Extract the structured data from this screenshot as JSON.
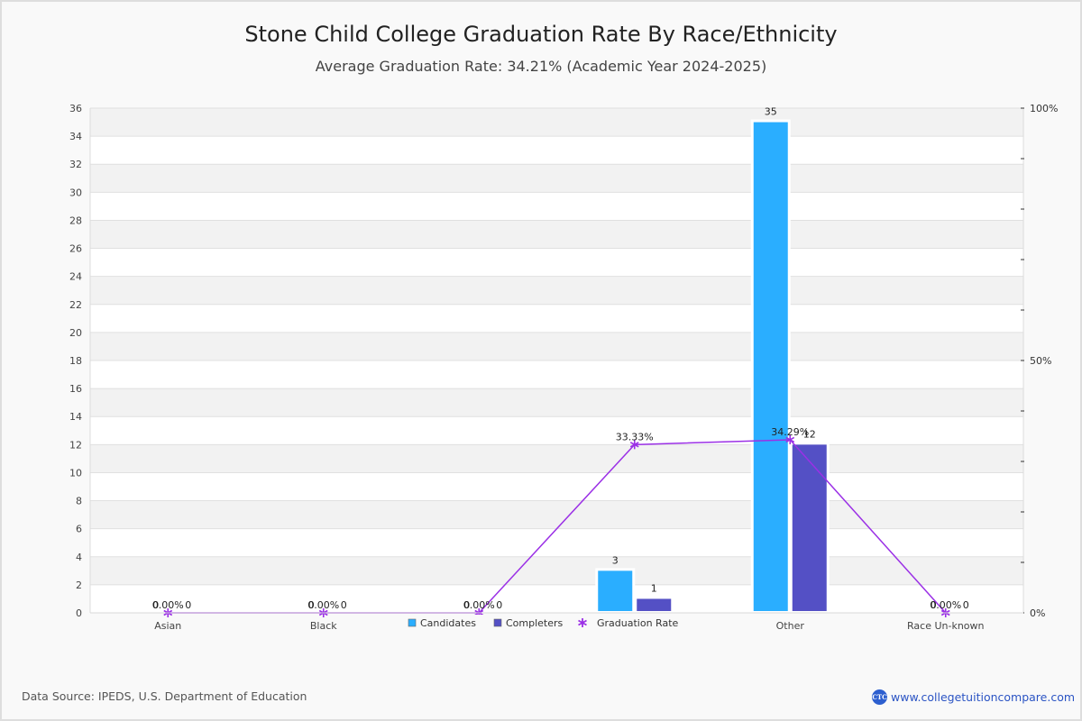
{
  "header": {
    "title": "Stone Child College Graduation Rate By Race/Ethnicity",
    "subtitle": "Average Graduation Rate: 34.21% (Academic Year 2024-2025)"
  },
  "footer": {
    "source": "Data Source: IPEDS, U.S. Department of Education",
    "brand_logo": "CTC",
    "brand_url": "www.collegetuitioncompare.com"
  },
  "colors": {
    "candidates": "#2aaeff",
    "completers": "#5450c5",
    "rate": "#9b30e6"
  },
  "chart_data": {
    "type": "bar",
    "title": "Stone Child College Graduation Rate By Race/Ethnicity",
    "subtitle": "Average Graduation Rate: 34.21% (Academic Year 2024-2025)",
    "categories": [
      "Asian",
      "Black",
      "",
      "",
      "Other",
      "Race Un-known"
    ],
    "series": [
      {
        "name": "Candidates",
        "type": "bar",
        "axis": "left",
        "values": [
          0,
          0,
          0,
          3,
          35,
          0
        ]
      },
      {
        "name": "Completers",
        "type": "bar",
        "axis": "left",
        "values": [
          0,
          0,
          0,
          1,
          12,
          0
        ]
      },
      {
        "name": "Graduation Rate",
        "type": "line",
        "axis": "right",
        "values": [
          0.0,
          0.0,
          0.0,
          33.33,
          34.29,
          0.0
        ]
      }
    ],
    "rate_labels": [
      "0.00%",
      "0.00%",
      "0.00%",
      "33.33%",
      "34.29%",
      "0.00%"
    ],
    "ylim": [
      0,
      36
    ],
    "y_ticks": [
      0,
      2,
      4,
      6,
      8,
      10,
      12,
      14,
      16,
      18,
      20,
      22,
      24,
      26,
      28,
      30,
      32,
      34,
      36
    ],
    "y2lim": [
      0,
      100
    ],
    "y2_ticks": [
      0,
      10,
      20,
      30,
      40,
      50,
      60,
      70,
      80,
      90,
      100
    ],
    "y2_tick_labels": {
      "0": "0%",
      "50": "50%",
      "100": "100%"
    },
    "xlabel": "",
    "ylabel": "",
    "grid": true,
    "legend": {
      "position": "bottom-center",
      "items": [
        "Candidates",
        "Completers",
        "Graduation Rate"
      ]
    }
  }
}
